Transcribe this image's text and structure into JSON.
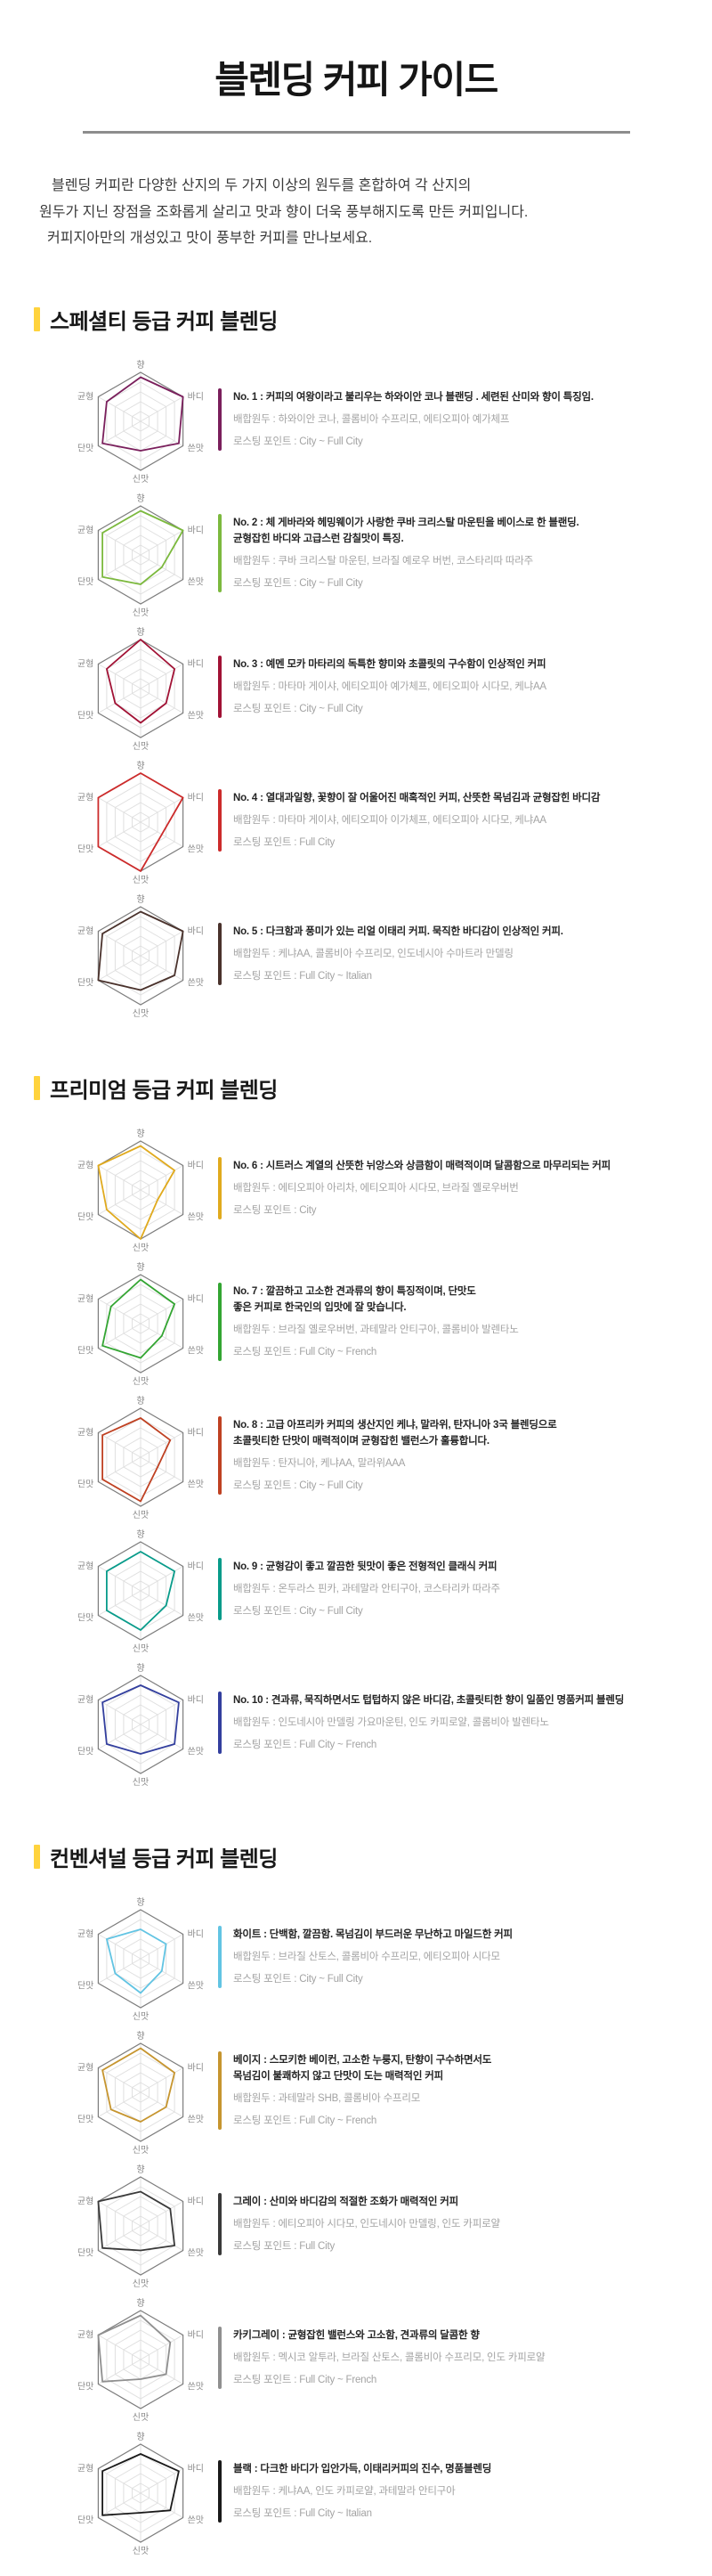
{
  "page": {
    "title": "블렌딩 커피 가이드",
    "intro_lines": [
      "블렌딩 커피란 다양한 산지의 두 가지 이상의 원두를 혼합하여 각 산지의",
      "원두가 지닌 장점을 조화롭게 살리고 맛과 향이 더욱 풍부해지도록 만든 커피입니다.",
      "커피지아만의 개성있고 맛이 풍부한 커피를 만나보세요."
    ]
  },
  "accent_color": "#ffd33d",
  "sections": [
    {
      "heading": "스페셜티 등급 커피 블렌딩",
      "items": [
        {
          "chart": 0,
          "title": "No. 1 : 커피의 여왕이라고 불리우는 하와이안 코나 블랜딩 . 세련된 산미와 향이 특징임.",
          "beans": "배합원두 : 하와이안 코나, 콜롬비아 수프리모, 에티오피아 예가체프",
          "roast": "로스팅 포인트 : City ~ Full City"
        },
        {
          "chart": 1,
          "title": "No. 2 : 체 게바라와 헤밍웨이가 사랑한 쿠바 크리스탈 마운틴을 베이스로 한 블랜딩.\n균형잡힌 바디와 고급스런 감칠맛이 특징.",
          "beans": "배합원두 : 쿠바 크리스탈 마운틴, 브라질 예로우 버번, 코스타리따 따라주",
          "roast": "로스팅 포인트 : City ~ Full City"
        },
        {
          "chart": 2,
          "title": "No. 3 : 예멘 모카 마타리의 독특한 향미와 초콜릿의 구수함이 인상적인 커피",
          "beans": "배합원두 : 마타마 게이샤, 에티오피아 예가체프, 에티오피아 시다모, 케냐AA",
          "roast": "로스팅 포인트 : City ~ Full City"
        },
        {
          "chart": 3,
          "title": "No. 4 : 열대과일향, 꽃향이 잘 어울어진 매혹적인 커피, 산뜻한 목넘김과 균형잡힌 바디감",
          "beans": "배합원두 : 마타마 게이샤, 에티오피아 이가체프, 에티오피아 시다모, 케냐AA",
          "roast": "로스팅 포인트 : Full City"
        },
        {
          "chart": 4,
          "title": "No. 5 : 다크함과 풍미가 있는 리얼 이태리 커피. 묵직한 바디감이 인상적인 커피.",
          "beans": "배합원두 : 케냐AA, 콜롬비아 수프리모, 인도네시아 수마트라 만델링",
          "roast": "로스팅 포인트 : Full City ~ Italian"
        }
      ]
    },
    {
      "heading": "프리미엄 등급 커피 블렌딩",
      "items": [
        {
          "chart": 5,
          "title": "No. 6 : 시트러스 계열의 산뜻한 뉘앙스와 상큼함이 매력적이며 달콤함으로 마무리되는 커피",
          "beans": "배합원두 : 에티오피아 아리차, 에티오피아 시다모, 브라질 옐로우버번",
          "roast": "로스팅 포인트 : City"
        },
        {
          "chart": 6,
          "title": "No. 7 : 깔끔하고 고소한 견과류의 향이 특징적이며, 단맛도\n좋은 커피로 한국인의 입맛에 잘 맞습니다.",
          "beans": "배합원두 : 브라질 옐로우버번, 과테말라 안티구아, 콜롬비아 발렌타노",
          "roast": "로스팅 포인트 : Full City ~ French"
        },
        {
          "chart": 7,
          "title": "No. 8 : 고급 아프리카 커피의 생산지인 케냐, 말라위, 탄자니아 3국 블렌딩으로\n초콜릿티한 단맛이 매력적이며 균형잡힌 밸런스가 훌륭합니다.",
          "beans": "배합원두 : 탄자니아, 케냐AA, 말라위AAA",
          "roast": "로스팅 포인트 : City ~ Full City"
        },
        {
          "chart": 8,
          "title": "No. 9 : 균형감이 좋고 깔끔한 뒷맛이 좋은 전형적인 클래식 커피",
          "beans": "배합원두 : 온두라스 핀카, 과테말라 안티구아, 코스타리카 따라주",
          "roast": "로스팅 포인트 : City ~ Full City"
        },
        {
          "chart": 9,
          "title": "No. 10 : 견과류, 묵직하면서도 텁텁하지 않은 바디감, 초콜릿티한 향이 일품인 명품커피 블렌딩",
          "beans": "배합원두 : 인도네시아 만델링 가요마운틴, 인도 카피로얄, 콜롬비아 발렌타노",
          "roast": "로스팅 포인트 : Full City ~ French"
        }
      ]
    },
    {
      "heading": "컨벤셔널 등급 커피 블렌딩",
      "items": [
        {
          "chart": 10,
          "title": "화이트 : 단백함, 깔끔함. 목넘김이 부드러운 무난하고 마일드한 커피",
          "beans": "배합원두 : 브라질 산토스, 콜롬비아 수프리모, 에티오피아 시다모",
          "roast": "로스팅 포인트 : City ~ Full City"
        },
        {
          "chart": 11,
          "title": "베이지 : 스모키한 베이컨, 고소한 누룽지, 탄향이 구수하면서도\n목넘김이 불쾌하지 않고 단맛이 도는 매력적인 커피",
          "beans": "배합원두 : 과테말라 SHB, 콜롬비아 수프리모",
          "roast": "로스팅 포인트 : Full City ~ French"
        },
        {
          "chart": 12,
          "title": "그레이 : 산미와 바디감의 적절한 조화가 매력적인 커피",
          "beans": "배합원두 : 에티오피아 시다모, 인도네시아 만델링, 인도 카피로얄",
          "roast": "로스팅 포인트 : Full City"
        },
        {
          "chart": 13,
          "title": "카키그레이 : 균형잡힌 밸런스와 고소함, 견과류의 달콤한 향",
          "beans": "배합원두 : 멕시코 알투라, 브라질 산토스, 콜롬비아 수프리모, 인도 카피로얄",
          "roast": "로스팅 포인트 : Full City ~ French"
        },
        {
          "chart": 14,
          "title": "블랙 : 다크한 바디가 입안가득, 이태리커피의 진수, 명품블렌딩",
          "beans": "배합원두 : 케냐AA, 인도 카피로얄, 과테말라 안티구아",
          "roast": "로스팅 포인트 : Full City ~ Italian"
        }
      ]
    }
  ],
  "chart_data": [
    {
      "type": "radar",
      "name": "No. 1",
      "categories": [
        "향",
        "바디",
        "쓴맛",
        "신맛",
        "단맛",
        "균형"
      ],
      "values": [
        4.5,
        5,
        4.5,
        3,
        4.5,
        4
      ],
      "max": 5,
      "color": "#7a1f5c"
    },
    {
      "type": "radar",
      "name": "No. 2",
      "categories": [
        "향",
        "바디",
        "쓴맛",
        "신맛",
        "단맛",
        "균형"
      ],
      "values": [
        4.5,
        5,
        2.5,
        3,
        4.5,
        4.5
      ],
      "max": 5,
      "color": "#7cb93e"
    },
    {
      "type": "radar",
      "name": "No. 3",
      "categories": [
        "향",
        "바디",
        "쓴맛",
        "신맛",
        "단맛",
        "균형"
      ],
      "values": [
        5,
        4,
        3,
        3.5,
        3,
        4
      ],
      "max": 5,
      "color": "#a11235"
    },
    {
      "type": "radar",
      "name": "No. 4",
      "categories": [
        "향",
        "바디",
        "쓴맛",
        "신맛",
        "단맛",
        "균형"
      ],
      "values": [
        5,
        5,
        2.5,
        5,
        5,
        5
      ],
      "max": 5,
      "color": "#cc2b2b"
    },
    {
      "type": "radar",
      "name": "No. 5",
      "categories": [
        "향",
        "바디",
        "쓴맛",
        "신맛",
        "단맛",
        "균형"
      ],
      "values": [
        4.5,
        5,
        4,
        3.5,
        5,
        4.5
      ],
      "max": 5,
      "color": "#4a322c"
    },
    {
      "type": "radar",
      "name": "No. 6",
      "categories": [
        "향",
        "바디",
        "쓴맛",
        "신맛",
        "단맛",
        "균형"
      ],
      "values": [
        4.5,
        4,
        2,
        5,
        4,
        5
      ],
      "max": 5,
      "color": "#e0aa1e"
    },
    {
      "type": "radar",
      "name": "No. 7",
      "categories": [
        "향",
        "바디",
        "쓴맛",
        "신맛",
        "단맛",
        "균형"
      ],
      "values": [
        4.5,
        4,
        2.5,
        3.5,
        4.5,
        3.5
      ],
      "max": 5,
      "color": "#33a532"
    },
    {
      "type": "radar",
      "name": "No. 8",
      "categories": [
        "향",
        "바디",
        "쓴맛",
        "신맛",
        "단맛",
        "균형"
      ],
      "values": [
        4,
        3.5,
        2,
        4.5,
        4.5,
        4.5
      ],
      "max": 5,
      "color": "#bf4122"
    },
    {
      "type": "radar",
      "name": "No. 9",
      "categories": [
        "향",
        "바디",
        "쓴맛",
        "신맛",
        "단맛",
        "균형"
      ],
      "values": [
        4,
        4,
        3,
        4,
        4,
        4
      ],
      "max": 5,
      "color": "#089b8a"
    },
    {
      "type": "radar",
      "name": "No. 10",
      "categories": [
        "향",
        "바디",
        "쓴맛",
        "신맛",
        "단맛",
        "균형"
      ],
      "values": [
        4,
        4.5,
        4,
        3,
        4,
        4.5
      ],
      "max": 5,
      "color": "#333f9e"
    },
    {
      "type": "radar",
      "name": "화이트",
      "categories": [
        "향",
        "바디",
        "쓴맛",
        "신맛",
        "단맛",
        "균형"
      ],
      "values": [
        3,
        3,
        2.5,
        3.5,
        3,
        4
      ],
      "max": 5,
      "color": "#62c4e3"
    },
    {
      "type": "radar",
      "name": "베이지",
      "categories": [
        "향",
        "바디",
        "쓴맛",
        "신맛",
        "단맛",
        "균형"
      ],
      "values": [
        4.5,
        4,
        3,
        3,
        3.5,
        4.5
      ],
      "max": 5,
      "color": "#c6952f"
    },
    {
      "type": "radar",
      "name": "그레이",
      "categories": [
        "향",
        "바디",
        "쓴맛",
        "신맛",
        "단맛",
        "균형"
      ],
      "values": [
        3.5,
        3.5,
        4,
        2.5,
        4.5,
        5
      ],
      "max": 5,
      "color": "#3a3a3a"
    },
    {
      "type": "radar",
      "name": "카키그레이",
      "categories": [
        "향",
        "바디",
        "쓴맛",
        "신맛",
        "단맛",
        "균형"
      ],
      "values": [
        4.5,
        3.5,
        3,
        2,
        4.5,
        5
      ],
      "max": 5,
      "color": "#8f8f8f"
    },
    {
      "type": "radar",
      "name": "블랙",
      "categories": [
        "향",
        "바디",
        "쓴맛",
        "신맛",
        "단맛",
        "균형"
      ],
      "values": [
        4,
        4.5,
        3.5,
        2,
        4.5,
        4.5
      ],
      "max": 5,
      "color": "#1a1a1a"
    }
  ]
}
